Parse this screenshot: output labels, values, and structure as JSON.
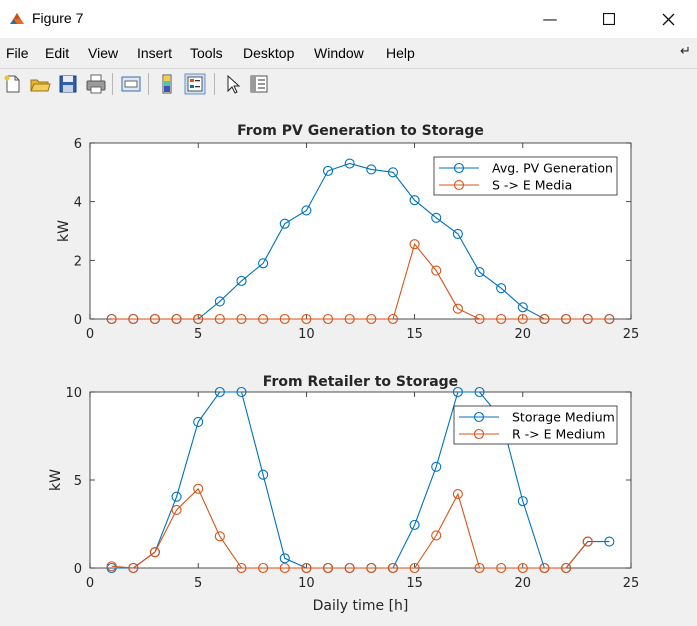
{
  "window": {
    "title": "Figure 7",
    "minimize_icon": "minimize-icon",
    "maximize_icon": "maximize-icon",
    "close_icon": "close-icon"
  },
  "menu": [
    "File",
    "Edit",
    "View",
    "Insert",
    "Tools",
    "Desktop",
    "Window",
    "Help"
  ],
  "toolbar": {
    "icons": [
      "new-figure-icon",
      "open-file-icon",
      "save-icon",
      "print-icon",
      "print-preview-icon",
      "colorbar-icon",
      "legend-icon",
      "pointer-icon",
      "property-inspector-icon"
    ]
  },
  "colors": {
    "series1": "#0072BD",
    "series2": "#D95319",
    "axes_bg": "#ffffff",
    "figure_bg": "#f0f0f0"
  },
  "chart_data": [
    {
      "type": "line",
      "title": "From PV Generation to Storage",
      "xlabel": "",
      "ylabel": "kW",
      "xlim": [
        0,
        25
      ],
      "ylim": [
        0,
        6
      ],
      "xticks": [
        "0",
        "5",
        "10",
        "15",
        "20",
        "25"
      ],
      "yticks": [
        "0",
        "2",
        "4",
        "6"
      ],
      "grid": false,
      "legend_position": "top-right",
      "x": [
        1,
        2,
        3,
        4,
        5,
        6,
        7,
        8,
        9,
        10,
        11,
        12,
        13,
        14,
        15,
        16,
        17,
        18,
        19,
        20,
        21,
        22,
        23,
        24
      ],
      "series": [
        {
          "name": "Avg. PV Generation",
          "values": [
            0,
            0,
            0,
            0,
            0,
            0.6,
            1.3,
            1.9,
            3.25,
            3.7,
            5.05,
            5.3,
            5.1,
            5.0,
            4.05,
            3.45,
            2.9,
            1.6,
            1.05,
            0.4,
            0,
            0,
            0,
            0
          ]
        },
        {
          "name": "S -> E Media",
          "values": [
            0,
            0,
            0,
            0,
            0,
            0,
            0,
            0,
            0,
            0,
            0,
            0,
            0,
            0,
            2.55,
            1.65,
            0.35,
            0,
            0,
            0,
            0,
            0,
            0,
            0
          ]
        }
      ]
    },
    {
      "type": "line",
      "title": "From Retailer to Storage",
      "xlabel": "Daily time [h]",
      "ylabel": "kW",
      "xlim": [
        0,
        25
      ],
      "ylim": [
        0,
        10
      ],
      "xticks": [
        "0",
        "5",
        "10",
        "15",
        "20",
        "25"
      ],
      "yticks": [
        "0",
        "5",
        "10"
      ],
      "grid": false,
      "legend_position": "top-right",
      "x": [
        1,
        2,
        3,
        4,
        5,
        6,
        7,
        8,
        9,
        10,
        11,
        12,
        13,
        14,
        15,
        16,
        17,
        18,
        19,
        20,
        21,
        22,
        23,
        24
      ],
      "series": [
        {
          "name": "Storage Medium",
          "values": [
            0,
            0,
            0.9,
            4.05,
            8.3,
            10,
            10,
            5.3,
            0.55,
            0,
            0,
            0,
            0,
            0,
            2.45,
            5.75,
            10,
            10,
            8.5,
            3.8,
            0,
            0,
            1.5,
            1.5
          ]
        },
        {
          "name": "R -> E Medium",
          "values": [
            0.1,
            0,
            0.9,
            3.3,
            4.5,
            1.8,
            0,
            0,
            0,
            0,
            0,
            0,
            0,
            0,
            0,
            1.85,
            4.2,
            0,
            0,
            0,
            0,
            0,
            1.5,
            null
          ]
        }
      ]
    }
  ]
}
